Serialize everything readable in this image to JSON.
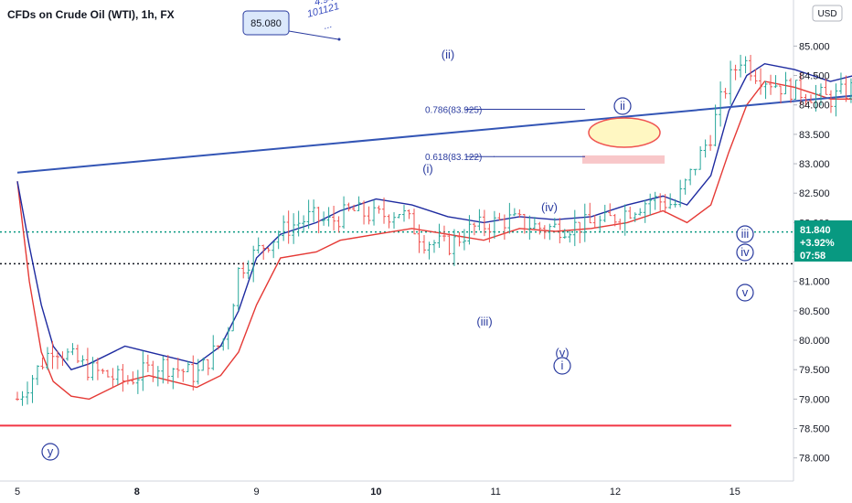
{
  "header": {
    "title": "CFDs on Crude Oil (WTI), 1h, FX",
    "currency": "USD"
  },
  "chart_data": {
    "type": "candlestick",
    "xlabels": [
      "5",
      "8",
      "9",
      "10",
      "11",
      "12",
      "15"
    ],
    "xlabels_bold": [
      "8",
      "10"
    ],
    "y_ticks": [
      78.0,
      78.5,
      79.0,
      79.5,
      80.0,
      80.5,
      81.0,
      81.5,
      82.0,
      82.5,
      83.0,
      83.5,
      84.0,
      84.5,
      85.0
    ],
    "y_top_partial": "8",
    "ylim": [
      77.7,
      85.55
    ],
    "current_price": {
      "value": "81.840",
      "change": "+3.92%",
      "countdown": "07:58"
    },
    "levels": {
      "green_dotted": 81.84,
      "black_dotted": 81.3,
      "red_support": 78.55
    },
    "callout": {
      "value": "85.080"
    },
    "callout_annotations": [
      "4.94",
      "101121",
      "..."
    ],
    "fib_levels": [
      {
        "label": "0.786(83.925)",
        "value": 83.925
      },
      {
        "label": "0.618(83.122)",
        "value": 83.122
      }
    ],
    "wave_labels": [
      "(ii)",
      "(i)",
      "(iv)",
      "(iii)",
      "(v)",
      "i",
      "ii",
      "iii",
      "iv",
      "v",
      "y"
    ],
    "close_path": [
      [
        0.0,
        79.0
      ],
      [
        0.3,
        79.9
      ],
      [
        0.6,
        79.5
      ],
      [
        0.9,
        79.3
      ],
      [
        1.2,
        79.6
      ],
      [
        1.5,
        79.4
      ],
      [
        1.75,
        80.1
      ],
      [
        1.85,
        81.2
      ],
      [
        2.05,
        81.6
      ],
      [
        2.25,
        81.9
      ],
      [
        2.45,
        82.1
      ],
      [
        2.6,
        82.0
      ],
      [
        2.8,
        82.2
      ],
      [
        3.0,
        82.1
      ],
      [
        3.2,
        82.2
      ],
      [
        3.4,
        81.7
      ],
      [
        3.6,
        81.6
      ],
      [
        3.8,
        81.9
      ],
      [
        4.1,
        82.05
      ],
      [
        4.4,
        81.9
      ],
      [
        4.7,
        81.95
      ],
      [
        4.9,
        82.0
      ],
      [
        5.1,
        82.2
      ],
      [
        5.3,
        82.4
      ],
      [
        5.5,
        82.3
      ],
      [
        5.65,
        82.9
      ],
      [
        5.8,
        83.5
      ],
      [
        5.9,
        84.2
      ],
      [
        6.05,
        84.8
      ],
      [
        6.2,
        84.5
      ],
      [
        6.4,
        84.3
      ],
      [
        6.6,
        84.2
      ],
      [
        6.8,
        84.1
      ],
      [
        7.0,
        84.3
      ],
      [
        7.15,
        83.4
      ],
      [
        7.3,
        83.8
      ],
      [
        7.45,
        83.2
      ],
      [
        7.6,
        82.5
      ],
      [
        7.75,
        81.9
      ],
      [
        7.9,
        81.2
      ],
      [
        8.05,
        81.6
      ],
      [
        8.25,
        81.5
      ],
      [
        8.45,
        81.6
      ],
      [
        8.65,
        81.5
      ],
      [
        8.8,
        81.4
      ],
      [
        8.95,
        81.7
      ],
      [
        9.05,
        81.0
      ],
      [
        9.15,
        80.6
      ],
      [
        9.3,
        81.0
      ],
      [
        9.45,
        81.85
      ]
    ],
    "red_ma": [
      [
        0.0,
        82.7
      ],
      [
        0.1,
        81.0
      ],
      [
        0.2,
        79.8
      ],
      [
        0.3,
        79.3
      ],
      [
        0.45,
        79.05
      ],
      [
        0.6,
        79.0
      ],
      [
        0.9,
        79.3
      ],
      [
        1.1,
        79.4
      ],
      [
        1.3,
        79.3
      ],
      [
        1.5,
        79.2
      ],
      [
        1.7,
        79.4
      ],
      [
        1.85,
        79.8
      ],
      [
        2.0,
        80.6
      ],
      [
        2.2,
        81.4
      ],
      [
        2.5,
        81.5
      ],
      [
        2.7,
        81.7
      ],
      [
        3.0,
        81.8
      ],
      [
        3.3,
        81.9
      ],
      [
        3.6,
        81.8
      ],
      [
        3.9,
        81.7
      ],
      [
        4.2,
        81.9
      ],
      [
        4.5,
        81.85
      ],
      [
        4.8,
        81.9
      ],
      [
        5.1,
        82.0
      ],
      [
        5.4,
        82.2
      ],
      [
        5.6,
        82.0
      ],
      [
        5.8,
        82.3
      ],
      [
        5.95,
        83.2
      ],
      [
        6.1,
        84.0
      ],
      [
        6.25,
        84.4
      ],
      [
        6.5,
        84.3
      ],
      [
        6.8,
        84.1
      ],
      [
        7.0,
        84.1
      ],
      [
        7.2,
        83.9
      ],
      [
        7.4,
        83.3
      ],
      [
        7.6,
        82.4
      ],
      [
        7.75,
        81.7
      ],
      [
        7.9,
        81.3
      ],
      [
        8.05,
        81.2
      ],
      [
        8.3,
        81.2
      ],
      [
        8.55,
        81.3
      ],
      [
        8.8,
        81.3
      ],
      [
        9.0,
        81.3
      ],
      [
        9.2,
        81.2
      ],
      [
        9.4,
        81.0
      ],
      [
        9.55,
        80.7
      ],
      [
        9.7,
        80.5
      ]
    ],
    "blue_ma": [
      [
        0.0,
        82.7
      ],
      [
        0.1,
        81.6
      ],
      [
        0.2,
        80.6
      ],
      [
        0.3,
        79.9
      ],
      [
        0.45,
        79.5
      ],
      [
        0.6,
        79.6
      ],
      [
        0.9,
        79.9
      ],
      [
        1.1,
        79.8
      ],
      [
        1.3,
        79.7
      ],
      [
        1.5,
        79.6
      ],
      [
        1.7,
        79.9
      ],
      [
        1.85,
        80.5
      ],
      [
        2.0,
        81.4
      ],
      [
        2.2,
        81.8
      ],
      [
        2.5,
        82.0
      ],
      [
        2.7,
        82.2
      ],
      [
        3.0,
        82.4
      ],
      [
        3.3,
        82.3
      ],
      [
        3.6,
        82.1
      ],
      [
        3.9,
        82.0
      ],
      [
        4.2,
        82.1
      ],
      [
        4.5,
        82.05
      ],
      [
        4.8,
        82.1
      ],
      [
        5.1,
        82.3
      ],
      [
        5.4,
        82.45
      ],
      [
        5.6,
        82.3
      ],
      [
        5.8,
        82.8
      ],
      [
        5.95,
        83.9
      ],
      [
        6.1,
        84.5
      ],
      [
        6.25,
        84.7
      ],
      [
        6.5,
        84.6
      ],
      [
        6.8,
        84.4
      ],
      [
        7.0,
        84.5
      ],
      [
        7.2,
        84.2
      ],
      [
        7.4,
        83.8
      ],
      [
        7.6,
        83.0
      ],
      [
        7.75,
        82.2
      ],
      [
        7.9,
        81.8
      ],
      [
        8.05,
        81.7
      ],
      [
        8.3,
        81.6
      ],
      [
        8.55,
        81.7
      ],
      [
        8.8,
        81.7
      ],
      [
        9.0,
        81.8
      ],
      [
        9.2,
        81.8
      ],
      [
        9.45,
        81.7
      ],
      [
        9.7,
        81.4
      ]
    ],
    "trendline": [
      [
        0.0,
        82.85
      ],
      [
        9.1,
        84.55
      ]
    ],
    "channel_upper": [
      [
        7.35,
        84.55
      ],
      [
        11.0,
        79.3
      ]
    ],
    "channel_lower": [
      [
        7.35,
        81.45
      ],
      [
        10.1,
        77.6
      ]
    ],
    "channel_mid": [
      [
        7.35,
        83.0
      ],
      [
        11.05,
        77.8
      ]
    ],
    "projection": [
      [
        8.9,
        80.3
      ],
      [
        9.45,
        82.0
      ],
      [
        9.75,
        81.4
      ],
      [
        10.2,
        83.1
      ]
    ]
  }
}
